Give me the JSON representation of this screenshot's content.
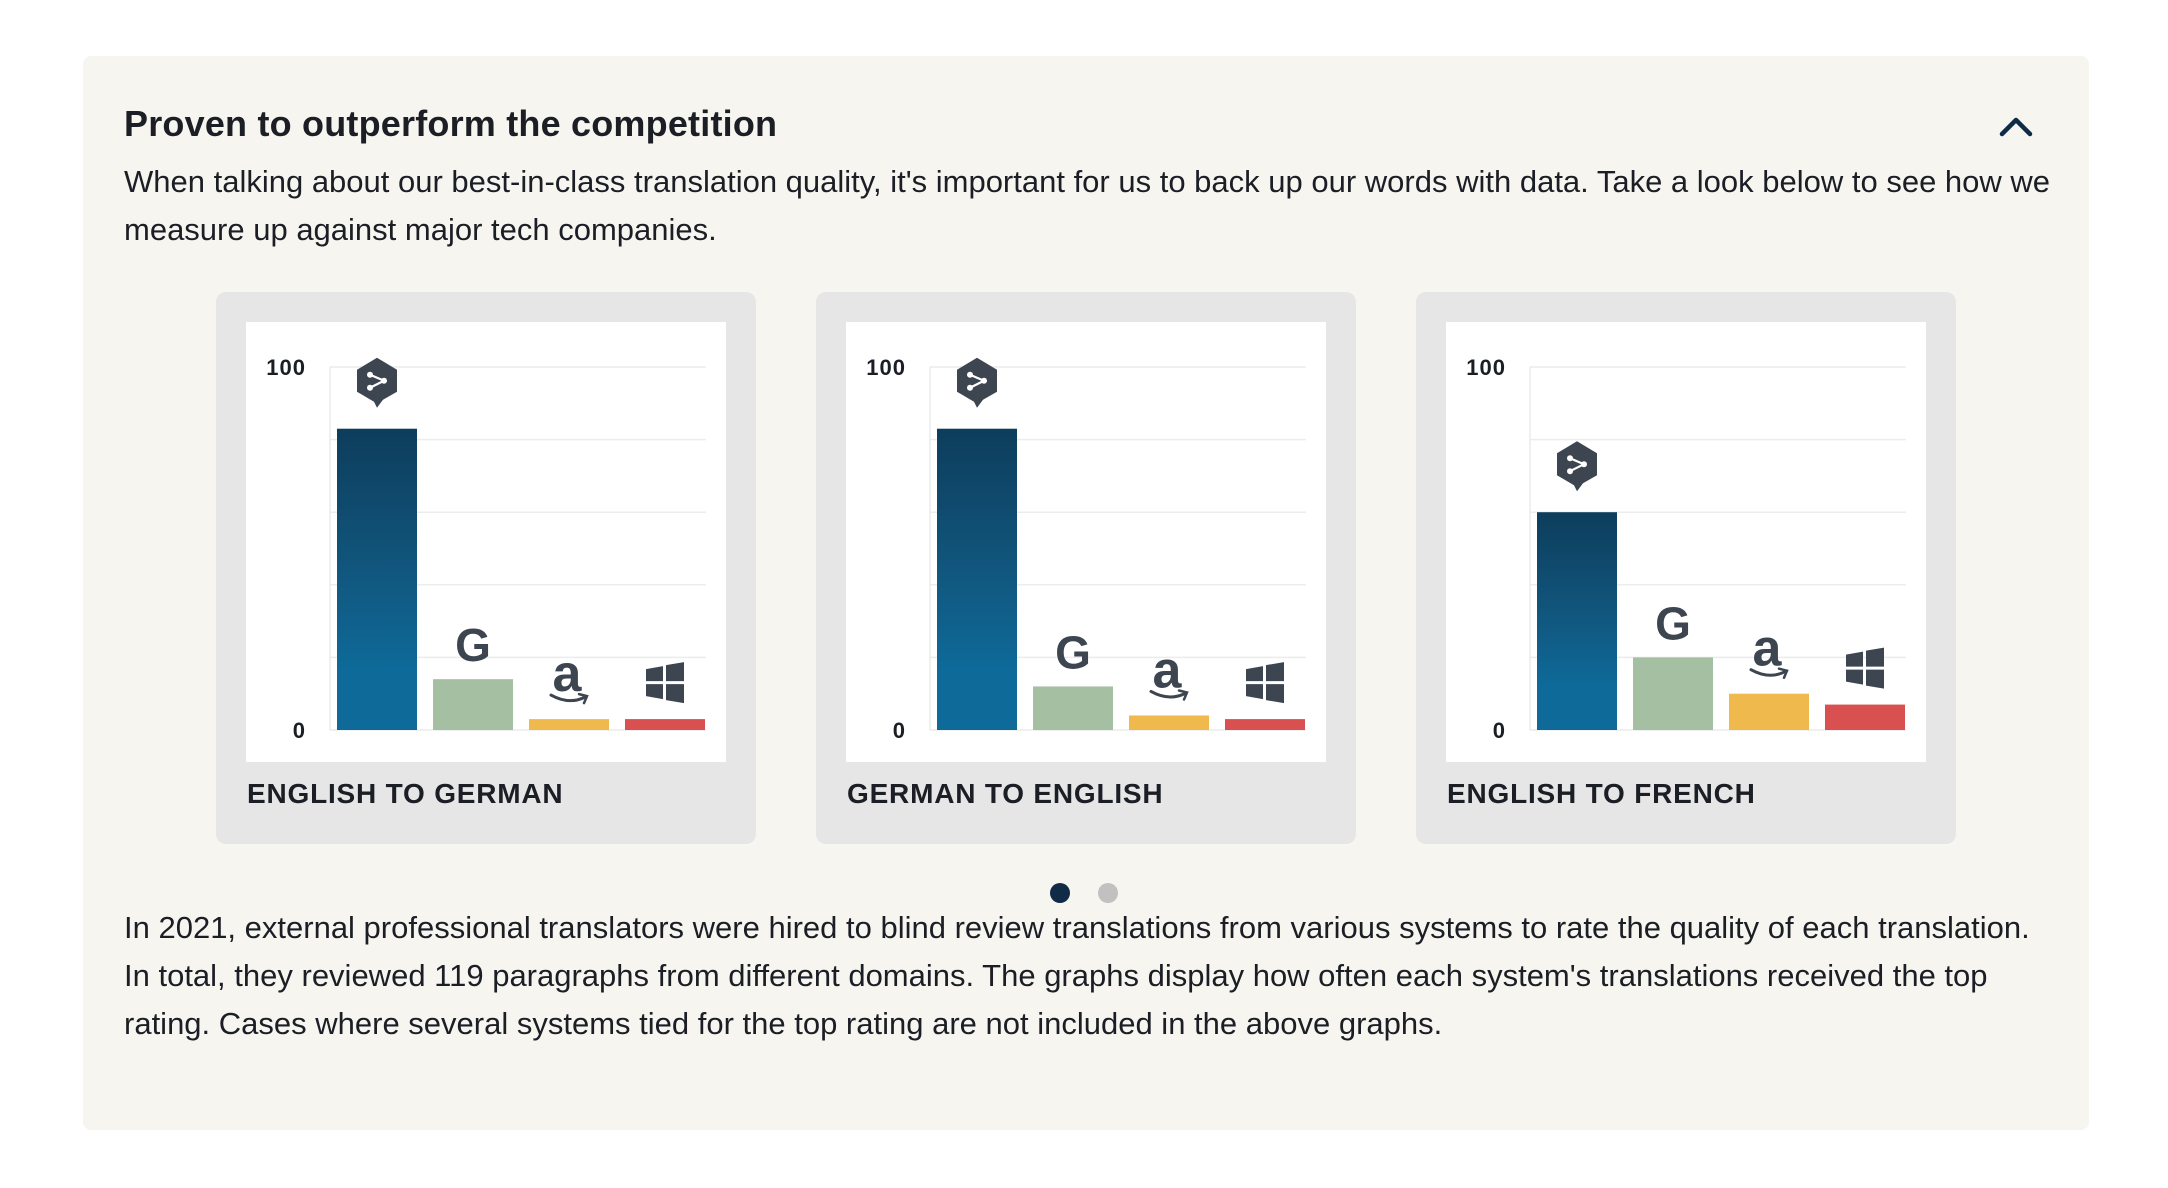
{
  "section": {
    "title": "Proven to outperform the competition",
    "intro": "When talking about our best-in-class translation quality, it's important for us to back up our words with data. Take a look below to see how we measure up against major tech companies.",
    "footnote": "In 2021, external professional translators were hired to blind review translations from various systems to rate the quality of each translation. In total, they reviewed 119 paragraphs from different domains. The graphs display how often each system's translations received the top rating. Cases where several systems tied for the top rating are not included in the above graphs.",
    "collapse_icon": "chevron-up-icon"
  },
  "carousel": {
    "pages": 2,
    "active_page": 1
  },
  "systems": [
    {
      "key": "deepl",
      "icon": "deepl-logo-icon",
      "color": "#0e6a99"
    },
    {
      "key": "google",
      "icon": "google-logo-icon",
      "color": "#a5bfa3"
    },
    {
      "key": "amazon",
      "icon": "amazon-logo-icon",
      "color": "#f0b94d"
    },
    {
      "key": "microsoft",
      "icon": "windows-logo-icon",
      "color": "#d85050"
    }
  ],
  "chart_data": [
    {
      "type": "bar",
      "title": "ENGLISH TO GERMAN",
      "categories": [
        "deepl",
        "google",
        "amazon",
        "microsoft"
      ],
      "values": [
        83,
        14,
        3,
        3
      ],
      "ylim": [
        0,
        100
      ],
      "yticks": [
        "0",
        "100"
      ],
      "grid": true
    },
    {
      "type": "bar",
      "title": "GERMAN TO ENGLISH",
      "categories": [
        "deepl",
        "google",
        "amazon",
        "microsoft"
      ],
      "values": [
        83,
        12,
        4,
        3
      ],
      "ylim": [
        0,
        100
      ],
      "yticks": [
        "0",
        "100"
      ],
      "grid": true
    },
    {
      "type": "bar",
      "title": "ENGLISH TO FRENCH",
      "categories": [
        "deepl",
        "google",
        "amazon",
        "microsoft"
      ],
      "values": [
        60,
        20,
        10,
        7
      ],
      "ylim": [
        0,
        100
      ],
      "yticks": [
        "0",
        "100"
      ],
      "grid": true
    }
  ]
}
